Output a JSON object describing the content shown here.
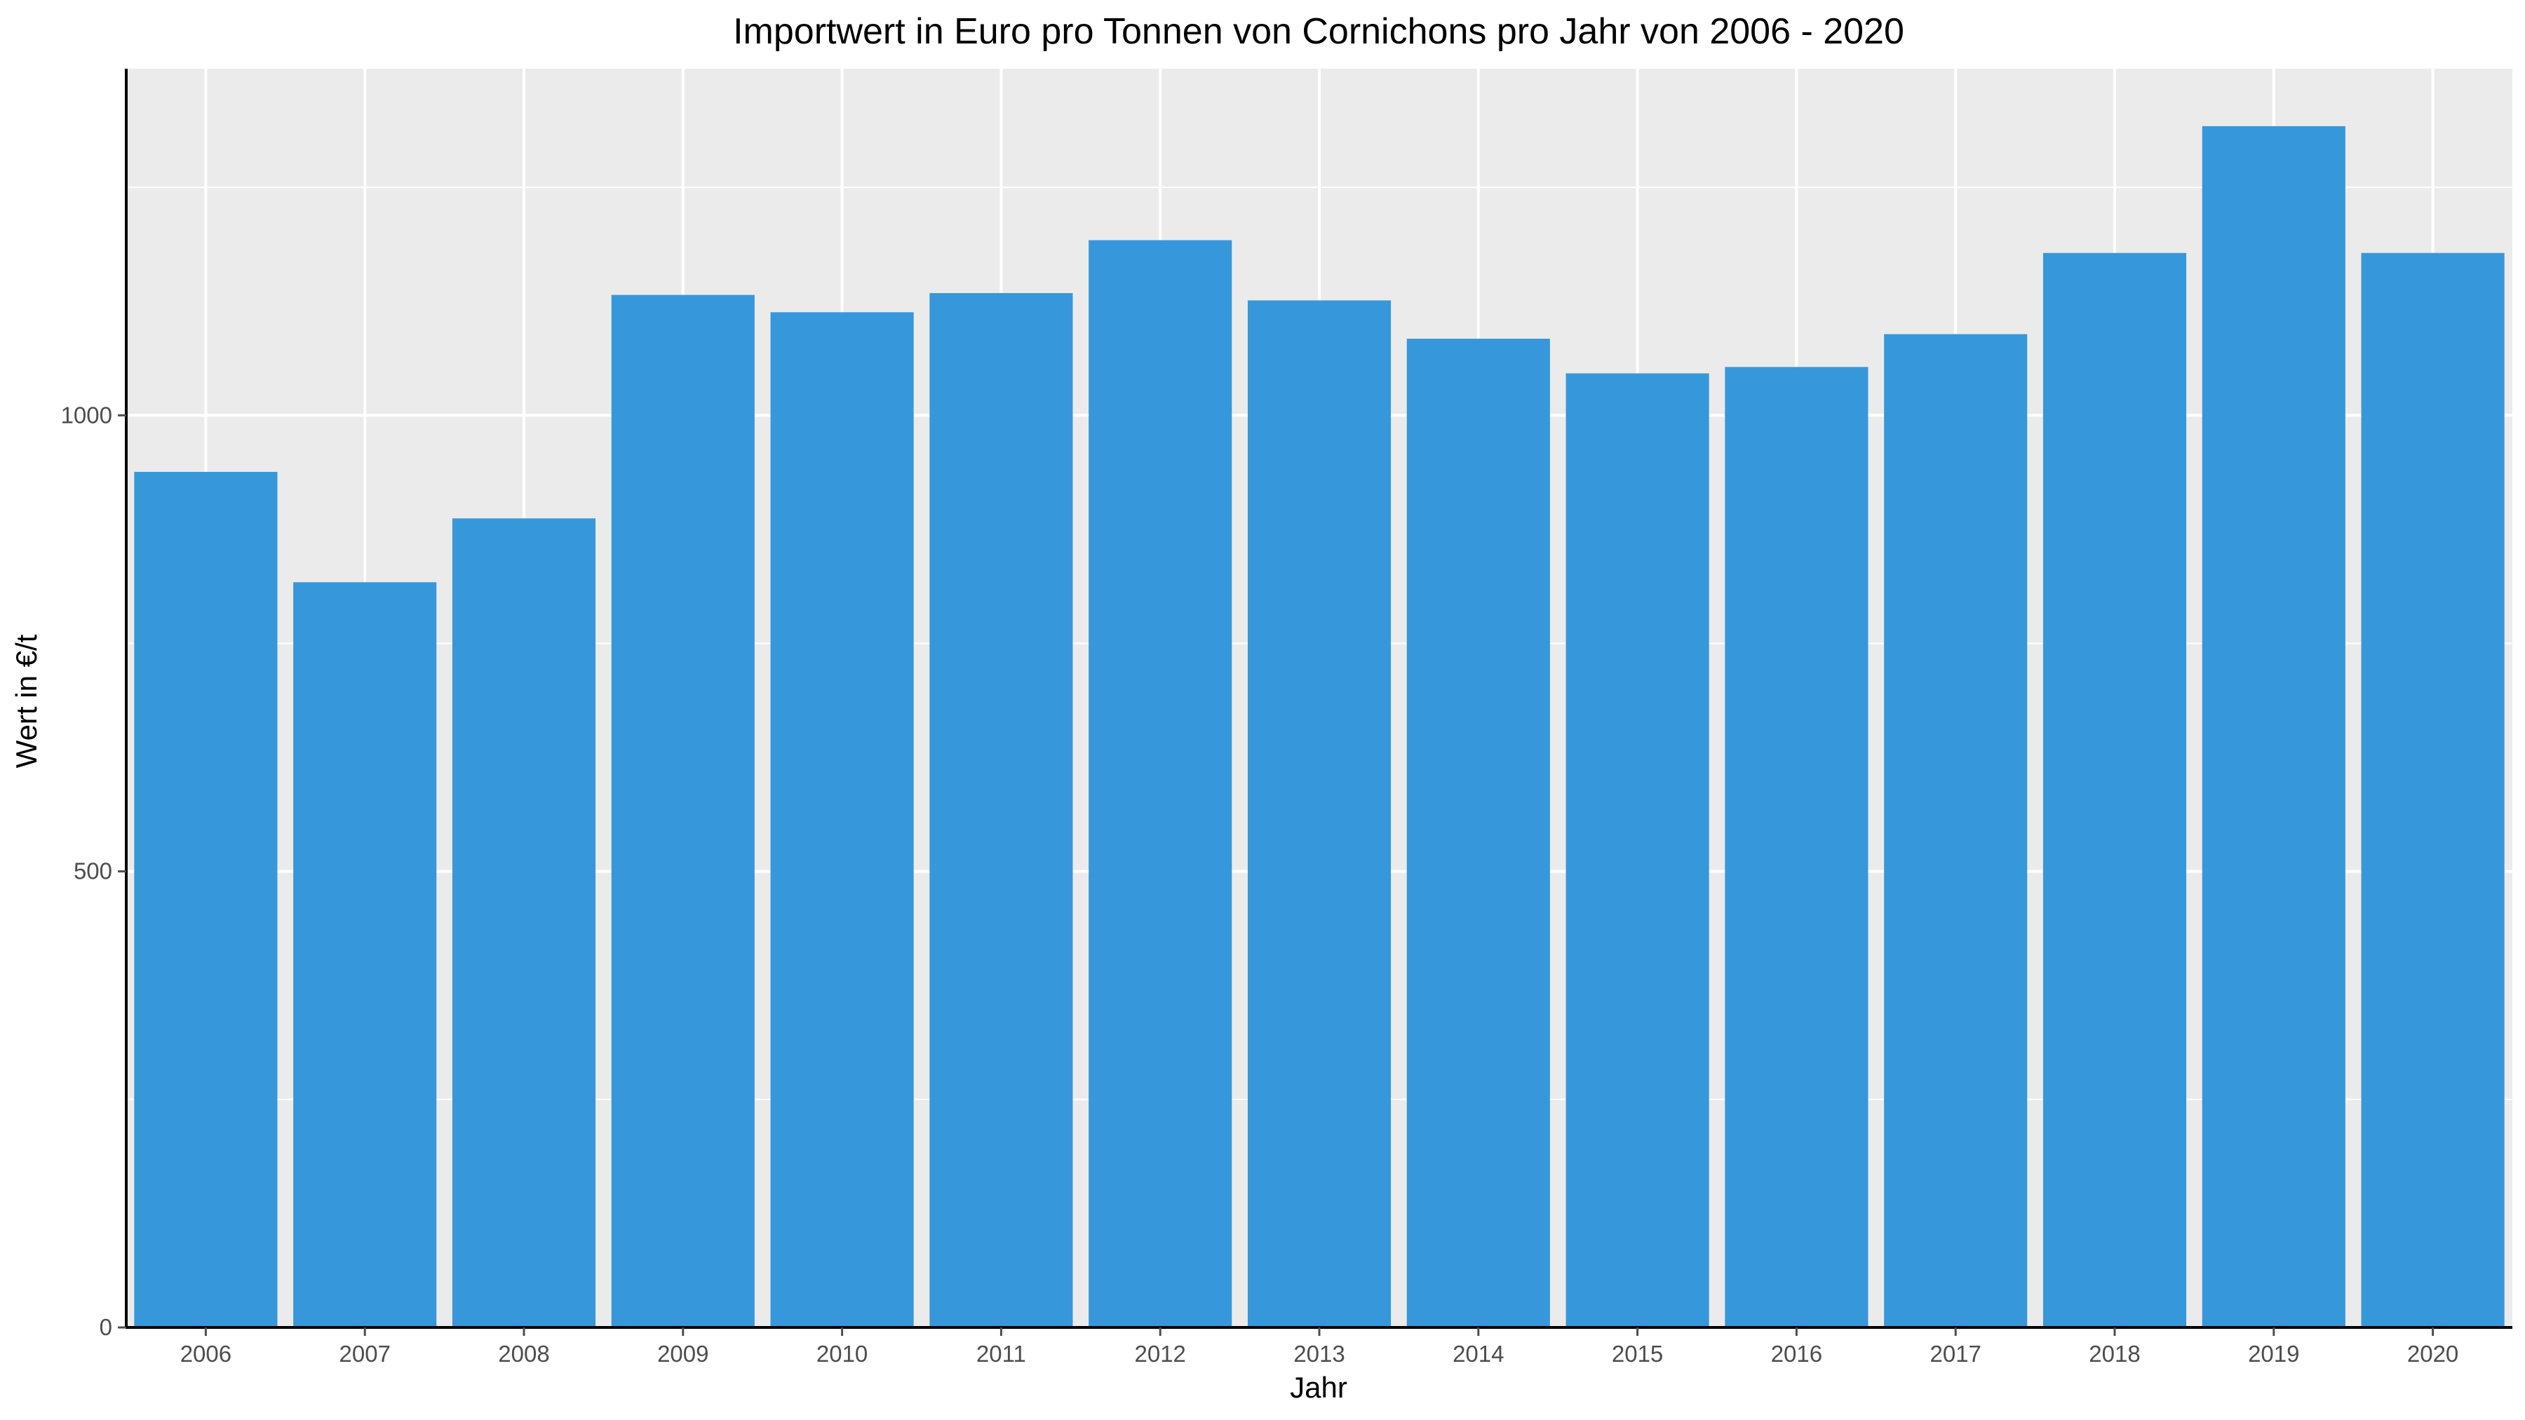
{
  "chart_data": {
    "type": "bar",
    "title": "Importwert in Euro pro Tonnen von Cornichons pro Jahr von 2006 - 2020",
    "xlabel": "Jahr",
    "ylabel": "Wert in €/t",
    "categories": [
      "2006",
      "2007",
      "2008",
      "2009",
      "2010",
      "2011",
      "2012",
      "2013",
      "2014",
      "2015",
      "2016",
      "2017",
      "2018",
      "2019",
      "2020"
    ],
    "values": [
      938,
      817,
      887,
      1132,
      1113,
      1134,
      1192,
      1126,
      1084,
      1046,
      1053,
      1089,
      1178,
      1317,
      1178
    ],
    "ylim": [
      0,
      1380
    ],
    "yticks": [
      0,
      500,
      1000
    ],
    "y_minor_gridlines": [
      250,
      750,
      1250
    ],
    "grid": true,
    "legend": "none",
    "colors": {
      "bar": "#3797DB",
      "panel_background": "#EBEBEB",
      "gridline": "#FFFFFF",
      "axis_line": "#000000",
      "tick_text": "#4D4D4D",
      "title_text": "#000000"
    }
  }
}
